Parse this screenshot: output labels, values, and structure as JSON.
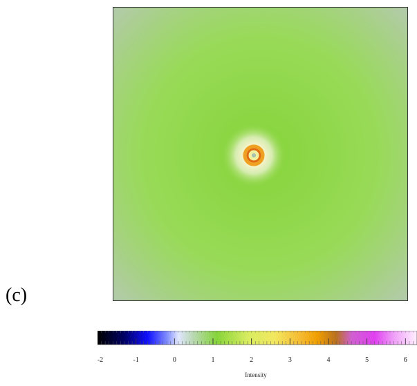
{
  "panel_label": "(c)",
  "chart_data": {
    "type": "heatmap",
    "title": "",
    "xlabel": "",
    "ylabel": "",
    "grid": false,
    "description_colors": {
      "background": "#b5c9b1",
      "mid_green": "#86d43a",
      "inner_yellow": "#eef0a0",
      "ring_orange": "#f0a020",
      "ring_red": "#e06a10",
      "center": "#a8c0b0"
    },
    "colorbar": {
      "label": "Intensity",
      "range": [
        -2,
        6.3
      ],
      "ticks": [
        -2,
        -1,
        0,
        1,
        2,
        3,
        4,
        5,
        6
      ],
      "tick_labels": [
        "-2",
        "-1",
        "0",
        "1",
        "2",
        "3",
        "4",
        "5",
        "6"
      ],
      "stops": [
        {
          "value": -2,
          "color": "#000000"
        },
        {
          "value": -1.3,
          "color": "#000066"
        },
        {
          "value": -0.7,
          "color": "#1010ff"
        },
        {
          "value": -0.2,
          "color": "#7f8cff"
        },
        {
          "value": 0.1,
          "color": "#e0e6ff"
        },
        {
          "value": 0.5,
          "color": "#b8d8b0"
        },
        {
          "value": 1.1,
          "color": "#86d43a"
        },
        {
          "value": 1.9,
          "color": "#d8ec60"
        },
        {
          "value": 2.6,
          "color": "#f2e860"
        },
        {
          "value": 3.3,
          "color": "#f5b830"
        },
        {
          "value": 3.7,
          "color": "#f0a000"
        },
        {
          "value": 4.2,
          "color": "#b87020"
        },
        {
          "value": 4.6,
          "color": "#d060d0"
        },
        {
          "value": 5.2,
          "color": "#e040f0"
        },
        {
          "value": 5.7,
          "color": "#f0a0f8"
        },
        {
          "value": 6.3,
          "color": "#fff0ff"
        }
      ]
    }
  }
}
